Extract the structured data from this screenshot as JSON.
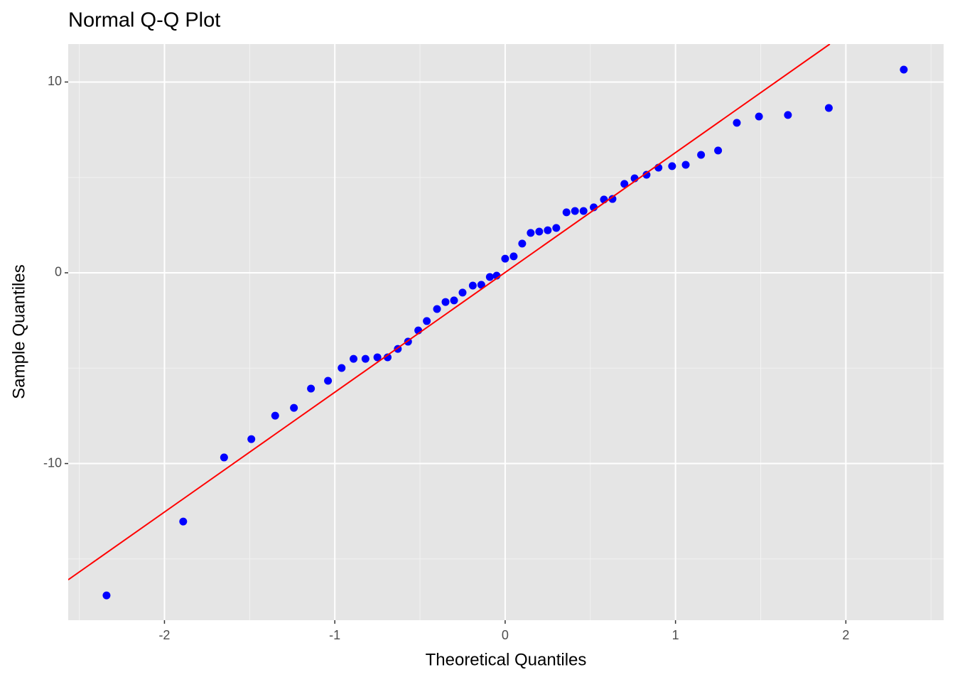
{
  "chart_data": {
    "type": "scatter",
    "title": "Normal Q-Q Plot",
    "x_label": "Theoretical Quantiles",
    "y_label": "Sample Quantiles",
    "xlim": [
      -2.565,
      2.574
    ],
    "ylim": [
      -18.21,
      11.99
    ],
    "xticks": [
      -2,
      -1,
      0,
      1,
      2
    ],
    "yticks": [
      -10,
      0,
      10
    ],
    "grid": true,
    "series": [
      {
        "type": "scatter",
        "color": "#0000ff",
        "x": [
          -2.34,
          -1.89,
          -1.65,
          -1.49,
          -1.35,
          -1.24,
          -1.14,
          -1.04,
          -0.96,
          -0.89,
          -0.82,
          -0.75,
          -0.69,
          -0.63,
          -0.57,
          -0.51,
          -0.46,
          -0.4,
          -0.35,
          -0.3,
          -0.25,
          -0.19,
          -0.14,
          -0.09,
          -0.05,
          0.0,
          0.05,
          0.1,
          0.15,
          0.2,
          0.25,
          0.3,
          0.36,
          0.41,
          0.46,
          0.52,
          0.58,
          0.63,
          0.7,
          0.76,
          0.83,
          0.9,
          0.98,
          1.06,
          1.15,
          1.25,
          1.36,
          1.49,
          1.66,
          1.9,
          2.34
        ],
        "values": [
          -16.91,
          -13.04,
          -9.68,
          -8.72,
          -7.49,
          -7.08,
          -6.07,
          -5.66,
          -4.99,
          -4.51,
          -4.51,
          -4.43,
          -4.43,
          -3.99,
          -3.61,
          -3.02,
          -2.53,
          -1.9,
          -1.53,
          -1.45,
          -1.04,
          -0.67,
          -0.63,
          -0.22,
          -0.15,
          0.74,
          0.86,
          1.53,
          2.09,
          2.16,
          2.23,
          2.35,
          3.17,
          3.24,
          3.24,
          3.43,
          3.84,
          3.87,
          4.66,
          4.95,
          5.14,
          5.51,
          5.59,
          5.66,
          6.18,
          6.41,
          7.86,
          8.19,
          8.27,
          8.64,
          10.65
        ]
      },
      {
        "type": "line",
        "color": "#ff0000",
        "x": [
          -2.565,
          1.906
        ],
        "values": [
          -16.09,
          11.99
        ]
      }
    ]
  }
}
